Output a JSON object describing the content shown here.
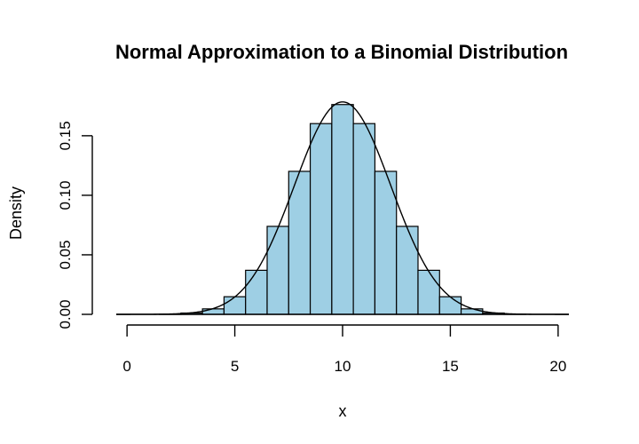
{
  "chart_data": {
    "type": "bar",
    "title": "Normal Approximation to a Binomial Distribution",
    "xlabel": "x",
    "ylabel": "Density",
    "xlim": [
      -0.5,
      20.5
    ],
    "ylim": [
      0,
      0.176
    ],
    "x_ticks": [
      0,
      5,
      10,
      15,
      20
    ],
    "x_tick_labels": [
      "0",
      "5",
      "10",
      "15",
      "20"
    ],
    "y_ticks": [
      0.0,
      0.05,
      0.1,
      0.15
    ],
    "y_tick_labels": [
      "0.00",
      "0.05",
      "0.10",
      "0.15"
    ],
    "categories": [
      0,
      1,
      2,
      3,
      4,
      5,
      6,
      7,
      8,
      9,
      10,
      11,
      12,
      13,
      14,
      15,
      16,
      17,
      18,
      19,
      20
    ],
    "values": [
      0.0,
      0.0,
      0.0002,
      0.0011,
      0.0046,
      0.0148,
      0.037,
      0.0739,
      0.1201,
      0.1602,
      0.1762,
      0.1602,
      0.1201,
      0.0739,
      0.037,
      0.0148,
      0.0046,
      0.0011,
      0.0002,
      0.0,
      0.0
    ],
    "curve": {
      "type": "normal",
      "mean": 10,
      "sd": 2.2361
    },
    "grid": false,
    "colors": {
      "bar_fill": "#9ecfe4",
      "bar_stroke": "#000000",
      "curve": "#000000",
      "axis": "#000000",
      "background": "#ffffff"
    }
  }
}
